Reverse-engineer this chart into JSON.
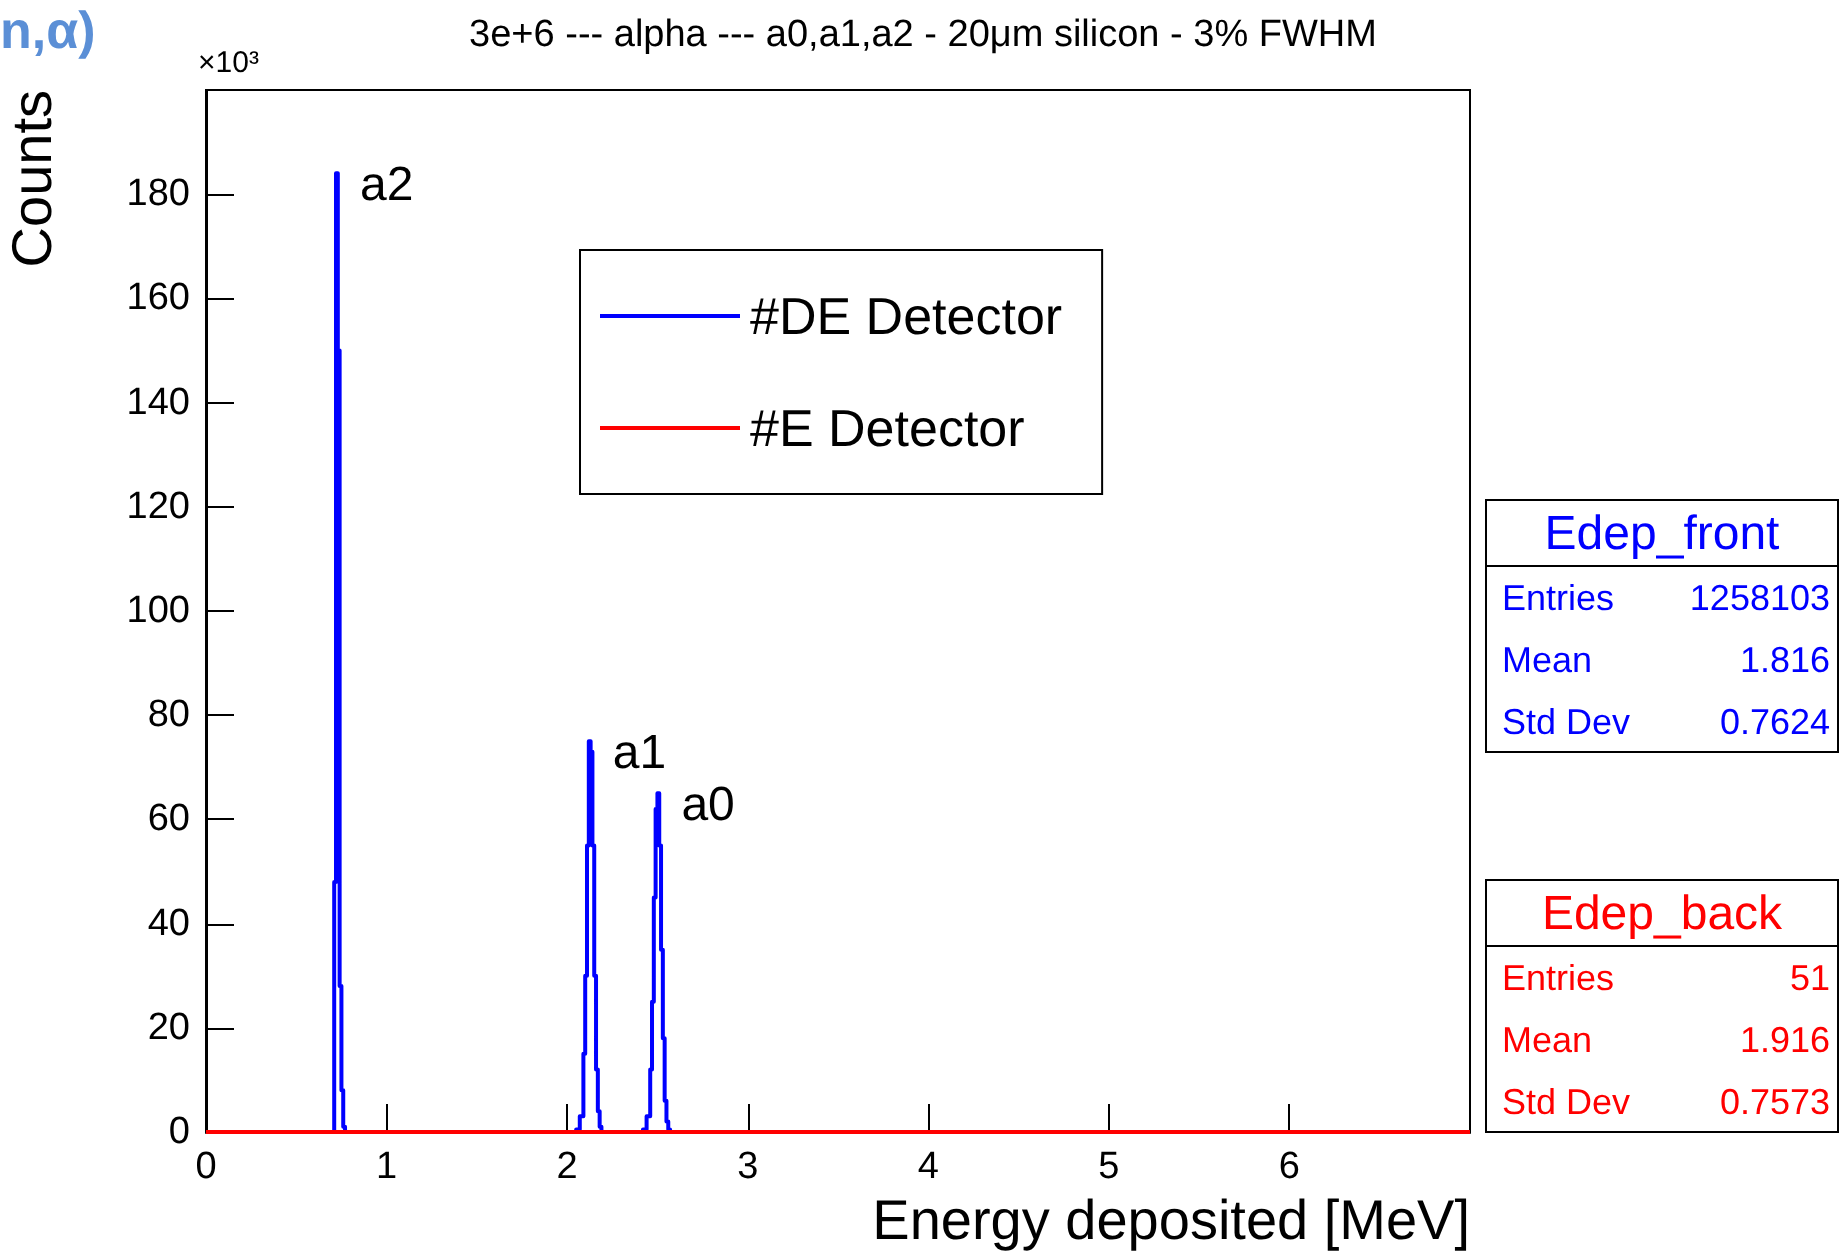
{
  "chart_data": {
    "type": "step",
    "title": "3e+6 --- alpha --- a0,a1,a2 - 20μm silicon - 3% FWHM",
    "xlabel": "Energy deposited [MeV]",
    "ylabel": "Counts",
    "xlim": [
      0,
      7
    ],
    "xticks": [
      0,
      1,
      2,
      3,
      4,
      5,
      6
    ],
    "ylim": [
      0,
      200
    ],
    "yticks": [
      0,
      20,
      40,
      60,
      80,
      100,
      120,
      140,
      160,
      180
    ],
    "grid": false,
    "legend": "top",
    "marker": "none",
    "line_style": "solid",
    "series": [
      {
        "name": "#DE Detector",
        "color": "#0000ff",
        "x": [
          0,
          0.7,
          0.71,
          0.72,
          0.73,
          0.74,
          0.75,
          0.76,
          0.77,
          2.05,
          2.07,
          2.09,
          2.1,
          2.11,
          2.12,
          2.13,
          2.14,
          2.15,
          2.16,
          2.17,
          2.18,
          2.19,
          2.42,
          2.44,
          2.46,
          2.47,
          2.48,
          2.49,
          2.5,
          2.51,
          2.52,
          2.53,
          2.54,
          2.55,
          2.56,
          2.57,
          7
        ],
        "values": [
          0,
          0,
          48,
          184,
          150,
          28,
          8,
          1,
          0,
          0.5,
          3,
          15,
          30,
          55,
          75,
          73,
          55,
          30,
          12,
          4,
          1,
          0,
          0.5,
          3,
          12,
          25,
          45,
          62,
          65,
          55,
          35,
          18,
          6,
          2,
          0.5,
          0,
          0
        ]
      },
      {
        "name": "#E Detector",
        "color": "#ff0000",
        "x": [
          0,
          7
        ],
        "values": [
          0,
          0
        ]
      }
    ],
    "annotations": [
      "n,α)",
      "×10³",
      {
        "text": "a2",
        "x": 0.72,
        "y": 184
      },
      {
        "text": "a1",
        "x": 2.12,
        "y": 75
      },
      {
        "text": "a0",
        "x": 2.5,
        "y": 65
      },
      "Edep_front",
      "Entries",
      "1258103",
      "Mean",
      "1.816",
      "Std Dev",
      "0.7624",
      "Edep_back",
      "Entries",
      "51",
      "Mean",
      "1.916",
      "Std Dev",
      "0.7573"
    ]
  }
}
